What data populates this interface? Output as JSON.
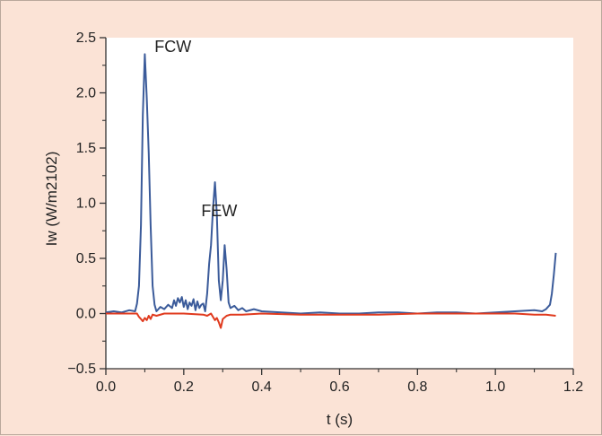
{
  "chart_data": {
    "type": "line",
    "title": "",
    "xlabel": "t (s)",
    "ylabel": "Iw (W/m2102)",
    "xlim": [
      0.0,
      1.2
    ],
    "ylim": [
      -0.5,
      2.5
    ],
    "xticks": [
      "0.0",
      "0.2",
      "0.4",
      "0.6",
      "0.8",
      "1.0",
      "1.2"
    ],
    "yticks": [
      "−0.5",
      "0.0",
      "0.5",
      "1.0",
      "1.5",
      "2.0",
      "2.5"
    ],
    "grid": false,
    "legend": "none",
    "plot_background": "#ffffff",
    "figure_background": "#fbe3d6",
    "annotations": [
      {
        "text": "FCW",
        "x": 0.125,
        "y": 2.42
      },
      {
        "text": "FEW",
        "x": 0.245,
        "y": 0.93
      }
    ],
    "series": [
      {
        "color": "#3b5b9a",
        "x": [
          0.0,
          0.02,
          0.04,
          0.06,
          0.075,
          0.08,
          0.085,
          0.09,
          0.095,
          0.1,
          0.105,
          0.11,
          0.115,
          0.12,
          0.125,
          0.13,
          0.14,
          0.15,
          0.16,
          0.17,
          0.175,
          0.18,
          0.185,
          0.19,
          0.195,
          0.2,
          0.205,
          0.21,
          0.215,
          0.22,
          0.225,
          0.23,
          0.235,
          0.24,
          0.245,
          0.25,
          0.255,
          0.26,
          0.265,
          0.27,
          0.275,
          0.28,
          0.285,
          0.29,
          0.295,
          0.3,
          0.305,
          0.31,
          0.315,
          0.32,
          0.33,
          0.34,
          0.35,
          0.36,
          0.38,
          0.4,
          0.45,
          0.5,
          0.55,
          0.6,
          0.65,
          0.7,
          0.75,
          0.8,
          0.85,
          0.9,
          0.95,
          1.0,
          1.05,
          1.1,
          1.12,
          1.13,
          1.14,
          1.145,
          1.15,
          1.155
        ],
        "y": [
          0.01,
          0.02,
          0.01,
          0.03,
          0.02,
          0.09,
          0.25,
          0.8,
          1.8,
          2.35,
          1.95,
          1.45,
          0.8,
          0.25,
          0.08,
          0.02,
          0.06,
          0.04,
          0.08,
          0.05,
          0.12,
          0.07,
          0.14,
          0.1,
          0.15,
          0.06,
          0.12,
          0.04,
          0.1,
          0.07,
          0.13,
          0.03,
          0.11,
          0.05,
          0.08,
          0.09,
          0.02,
          0.18,
          0.45,
          0.62,
          0.95,
          1.19,
          0.9,
          0.3,
          0.12,
          0.3,
          0.62,
          0.4,
          0.1,
          0.05,
          0.07,
          0.03,
          0.05,
          0.02,
          0.04,
          0.02,
          0.01,
          0.0,
          0.01,
          0.0,
          0.0,
          0.01,
          0.01,
          0.0,
          0.01,
          0.01,
          0.0,
          0.01,
          0.02,
          0.03,
          0.02,
          0.04,
          0.08,
          0.18,
          0.35,
          0.55
        ]
      },
      {
        "color": "#e03a1e",
        "x": [
          0.0,
          0.04,
          0.08,
          0.085,
          0.09,
          0.095,
          0.1,
          0.105,
          0.11,
          0.115,
          0.12,
          0.13,
          0.15,
          0.2,
          0.25,
          0.26,
          0.27,
          0.275,
          0.28,
          0.285,
          0.29,
          0.295,
          0.3,
          0.31,
          0.32,
          0.35,
          0.4,
          0.5,
          0.6,
          0.7,
          0.8,
          0.9,
          1.0,
          1.05,
          1.1,
          1.13,
          1.155
        ],
        "y": [
          0.0,
          0.0,
          0.0,
          -0.03,
          -0.05,
          -0.07,
          -0.04,
          -0.06,
          -0.02,
          -0.05,
          -0.01,
          -0.02,
          0.0,
          0.0,
          -0.01,
          -0.02,
          0.0,
          -0.03,
          -0.06,
          -0.04,
          -0.08,
          -0.13,
          -0.05,
          -0.02,
          -0.01,
          -0.01,
          0.0,
          -0.01,
          -0.01,
          -0.01,
          0.0,
          0.0,
          0.0,
          0.0,
          -0.01,
          -0.01,
          -0.02
        ]
      }
    ]
  }
}
